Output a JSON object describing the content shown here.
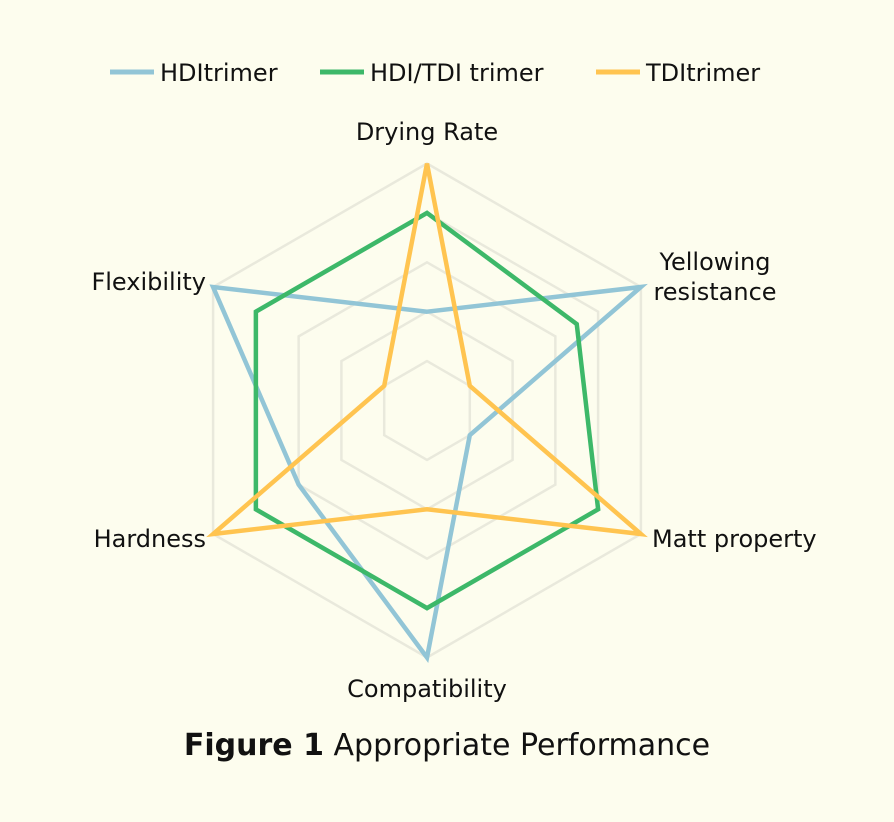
{
  "chart_data": {
    "type": "radar",
    "axes": [
      "Drying Rate",
      "Yellowing resistance",
      "Matt property",
      "Compatibility",
      "Hardness",
      "Flexibility"
    ],
    "axis_label_lines": [
      [
        "Drying Rate"
      ],
      [
        "Yellowing",
        "resistance"
      ],
      [
        "Matt property"
      ],
      [
        "Compatibility"
      ],
      [
        "Hardness"
      ],
      [
        "Flexibility"
      ]
    ],
    "rlim": [
      0,
      5
    ],
    "grid_levels": 5,
    "grid": true,
    "legend_position": "top",
    "series": [
      {
        "name": "HDItrimer",
        "color": "#92c5d6",
        "values": [
          2,
          5,
          1,
          5,
          3,
          5
        ]
      },
      {
        "name": "HDI/TDI trimer",
        "color": "#3db869",
        "values": [
          4,
          3.5,
          4,
          4,
          4,
          4
        ]
      },
      {
        "name": "TDItrimer",
        "color": "#ffc450",
        "values": [
          5,
          1,
          5,
          2,
          5,
          1
        ]
      }
    ]
  },
  "caption": {
    "prefix": "Figure 1",
    "text": "Appropriate Performance"
  }
}
